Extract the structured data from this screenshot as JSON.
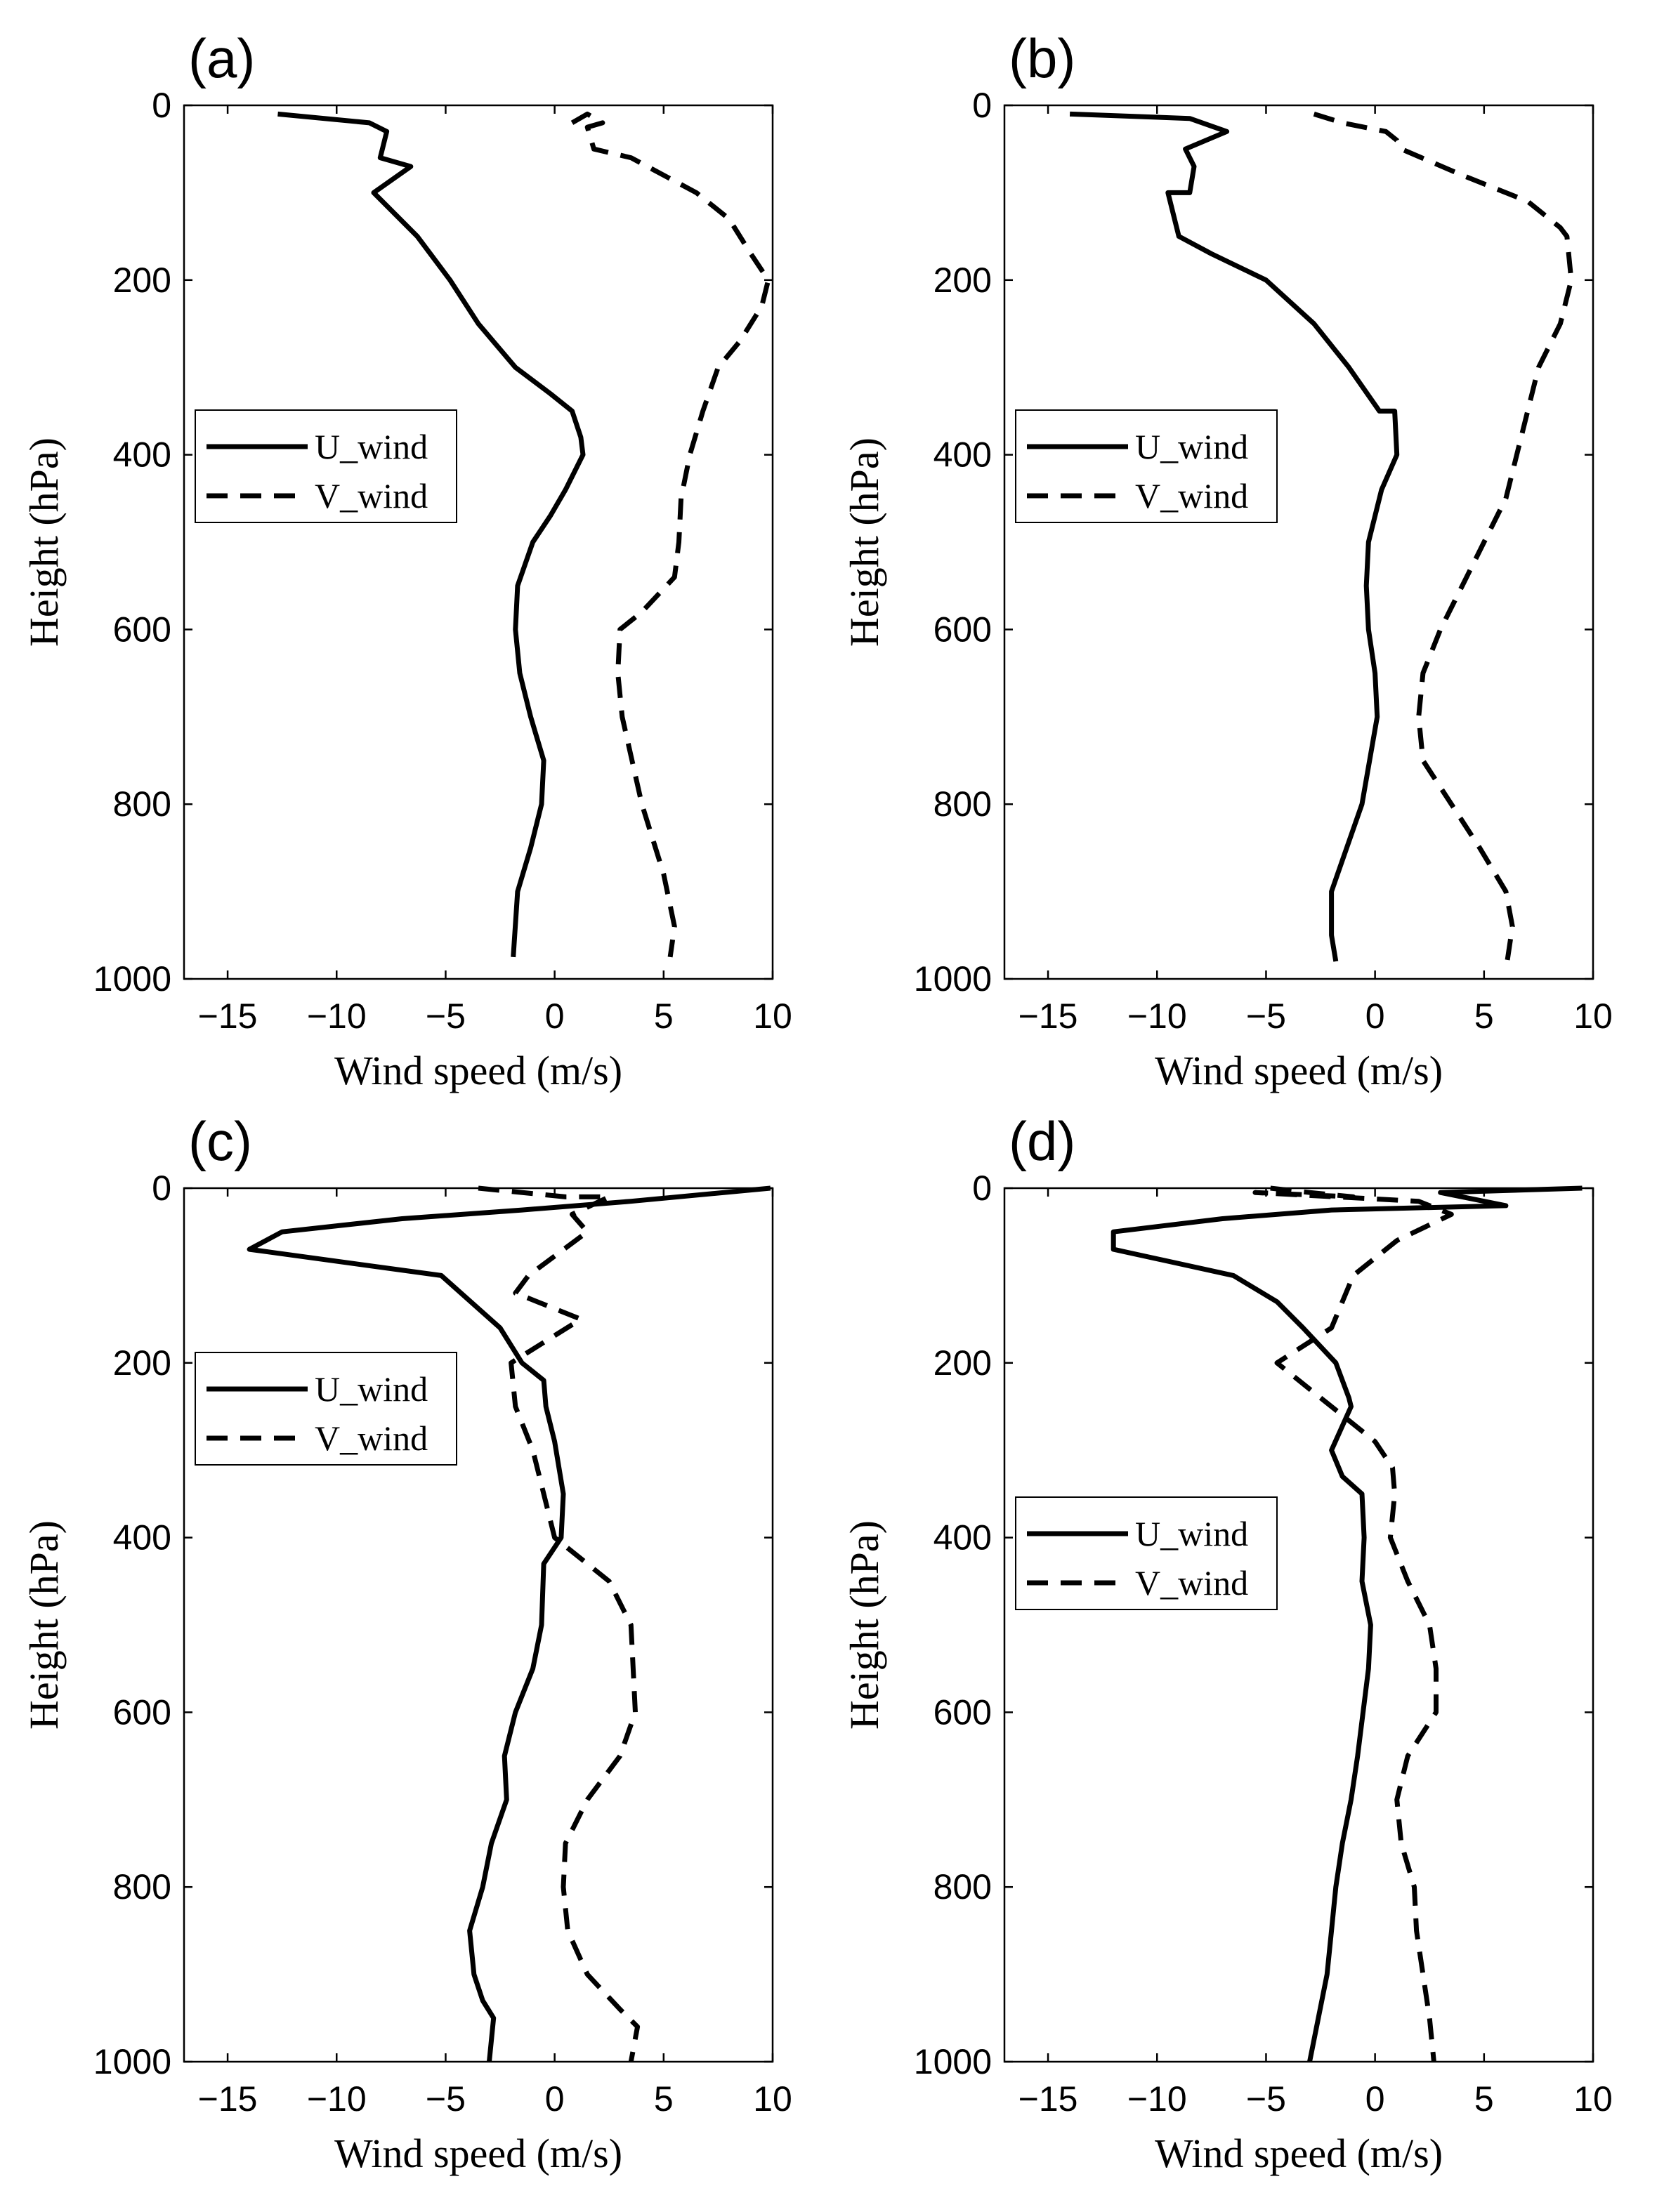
{
  "chart_data": [
    {
      "type": "line",
      "panel_label": "(a)",
      "xlabel": "Wind speed (m/s)",
      "ylabel": "Height (hPa)",
      "xlim": [
        -17,
        10
      ],
      "ylim": [
        0,
        1000
      ],
      "x_ticks": [
        "−15",
        "−10",
        "−5",
        "0",
        "5",
        "10"
      ],
      "x_tick_values": [
        -15,
        -10,
        -5,
        0,
        5,
        10
      ],
      "y_ticks": [
        "0",
        "200",
        "400",
        "600",
        "800",
        "1000"
      ],
      "y_tick_values": [
        0,
        200,
        400,
        600,
        800,
        1000
      ],
      "legend_position": "middle-left",
      "series": [
        {
          "name": "U_wind",
          "style": "solid",
          "x": [
            -12.7,
            -8.5,
            -7.7,
            -8.0,
            -6.6,
            -8.3,
            -6.3,
            -4.8,
            -3.5,
            -1.8,
            -0.2,
            0.8,
            1.2,
            1.3,
            0.5,
            -0.2,
            -1.0,
            -1.7,
            -1.8,
            -1.6,
            -1.1,
            -0.5,
            -0.6,
            -1.1,
            -1.7,
            -1.9
          ],
          "y": [
            10,
            20,
            30,
            60,
            70,
            100,
            150,
            200,
            250,
            300,
            330,
            350,
            380,
            400,
            440,
            470,
            500,
            550,
            600,
            650,
            700,
            750,
            800,
            850,
            900,
            975
          ]
        },
        {
          "name": "V_wind",
          "style": "dashed",
          "x": [
            0.8,
            1.5,
            2.2,
            1.5,
            1.8,
            3.5,
            6.5,
            8.0,
            9.0,
            9.8,
            9.5,
            8.5,
            7.5,
            6.8,
            6.2,
            5.8,
            5.7,
            5.6,
            5.5,
            4.0,
            3.0,
            2.9,
            3.1,
            4.0,
            5.0,
            5.5,
            5.3
          ],
          "y": [
            20,
            10,
            20,
            25,
            50,
            60,
            100,
            130,
            170,
            200,
            230,
            270,
            300,
            350,
            400,
            450,
            500,
            520,
            540,
            580,
            600,
            650,
            700,
            800,
            880,
            940,
            975
          ]
        }
      ]
    },
    {
      "type": "line",
      "panel_label": "(b)",
      "xlabel": "Wind speed (m/s)",
      "ylabel": "Height (hPa)",
      "xlim": [
        -17,
        10
      ],
      "ylim": [
        0,
        1000
      ],
      "x_ticks": [
        "−15",
        "−10",
        "−5",
        "0",
        "5",
        "10"
      ],
      "x_tick_values": [
        -15,
        -10,
        -5,
        0,
        5,
        10
      ],
      "y_ticks": [
        "0",
        "200",
        "400",
        "600",
        "800",
        "1000"
      ],
      "y_tick_values": [
        0,
        200,
        400,
        600,
        800,
        1000
      ],
      "legend_position": "middle-left",
      "series": [
        {
          "name": "U_wind",
          "style": "solid",
          "x": [
            -14.0,
            -8.5,
            -6.8,
            -8.7,
            -8.3,
            -8.5,
            -9.5,
            -9.0,
            -7.5,
            -5.0,
            -2.8,
            -1.2,
            0.2,
            0.9,
            1.0,
            0.3,
            -0.3,
            -0.4,
            -0.3,
            0.0,
            0.1,
            -0.6,
            -1.3,
            -2.0,
            -2.0,
            -1.8
          ],
          "y": [
            10,
            15,
            30,
            50,
            70,
            100,
            100,
            150,
            170,
            200,
            250,
            300,
            350,
            350,
            400,
            440,
            500,
            550,
            600,
            650,
            700,
            800,
            850,
            900,
            950,
            980
          ]
        },
        {
          "name": "V_wind",
          "style": "dashed",
          "x": [
            -2.8,
            -1.5,
            0.5,
            1.0,
            1.2,
            4.0,
            7.0,
            8.5,
            8.8,
            9.0,
            8.5,
            7.5,
            7.0,
            6.5,
            6.0,
            5.0,
            4.0,
            3.0,
            2.2,
            2.0,
            2.2,
            3.5,
            4.8,
            6.0,
            6.3,
            6.0
          ],
          "y": [
            10,
            20,
            30,
            40,
            50,
            80,
            110,
            140,
            150,
            200,
            250,
            300,
            350,
            400,
            450,
            500,
            550,
            600,
            650,
            700,
            750,
            800,
            850,
            900,
            940,
            990
          ]
        }
      ]
    },
    {
      "type": "line",
      "panel_label": "(c)",
      "xlabel": "Wind speed (m/s)",
      "ylabel": "Height (hPa)",
      "xlim": [
        -17,
        10
      ],
      "ylim": [
        0,
        1000
      ],
      "x_ticks": [
        "−15",
        "−10",
        "−5",
        "0",
        "5",
        "10"
      ],
      "x_tick_values": [
        -15,
        -10,
        -5,
        0,
        5,
        10
      ],
      "y_ticks": [
        "0",
        "200",
        "400",
        "600",
        "800",
        "1000"
      ],
      "y_tick_values": [
        0,
        200,
        400,
        600,
        800,
        1000
      ],
      "legend_position": "top-left",
      "series": [
        {
          "name": "U_wind",
          "style": "solid",
          "x": [
            9.9,
            3.5,
            -1.5,
            -7.0,
            -12.5,
            -14.0,
            -5.2,
            -2.5,
            -1.5,
            -0.5,
            -0.4,
            0.0,
            0.4,
            0.3,
            -0.5,
            -0.6,
            -1.0,
            -1.8,
            -2.3,
            -2.2,
            -2.9,
            -3.3,
            -3.9,
            -3.7,
            -3.3,
            -2.8,
            -3.0
          ],
          "y": [
            0,
            15,
            25,
            35,
            50,
            70,
            100,
            160,
            200,
            220,
            250,
            290,
            350,
            400,
            430,
            500,
            550,
            600,
            650,
            700,
            750,
            800,
            850,
            900,
            930,
            950,
            1000
          ]
        },
        {
          "name": "V_wind",
          "style": "dashed",
          "x": [
            -3.5,
            0.5,
            2.5,
            0.8,
            1.5,
            -1.2,
            -1.8,
            1.2,
            -2.0,
            -1.8,
            -1.0,
            -0.5,
            -0.2,
            0.0,
            1.0,
            2.5,
            3.5,
            3.7,
            3.0,
            1.5,
            0.5,
            0.4,
            0.6,
            1.5,
            3.0,
            3.8,
            3.5
          ],
          "y": [
            0,
            10,
            10,
            30,
            50,
            100,
            120,
            150,
            200,
            250,
            300,
            350,
            380,
            400,
            420,
            450,
            500,
            600,
            650,
            700,
            750,
            800,
            850,
            900,
            940,
            960,
            1000
          ]
        }
      ]
    },
    {
      "type": "line",
      "panel_label": "(d)",
      "xlabel": "Wind speed (m/s)",
      "ylabel": "Height (hPa)",
      "xlim": [
        -17,
        10
      ],
      "ylim": [
        0,
        1000
      ],
      "x_ticks": [
        "−15",
        "−10",
        "−5",
        "0",
        "5",
        "10"
      ],
      "x_tick_values": [
        -15,
        -10,
        -5,
        0,
        5,
        10
      ],
      "y_ticks": [
        "0",
        "200",
        "400",
        "600",
        "800",
        "1000"
      ],
      "y_tick_values": [
        0,
        200,
        400,
        600,
        800,
        1000
      ],
      "legend_position": "middle-left",
      "series": [
        {
          "name": "U_wind",
          "style": "solid",
          "x": [
            9.5,
            3.0,
            6.0,
            -2.0,
            -7.0,
            -12.0,
            -12.0,
            -6.5,
            -4.5,
            -3.3,
            -1.8,
            -1.2,
            -1.1,
            -2.0,
            -1.5,
            -0.6,
            -0.5,
            -0.6,
            -0.2,
            -0.3,
            -0.8,
            -1.1,
            -1.5,
            -1.8,
            -2.0,
            -2.2,
            -2.6,
            -3.0
          ],
          "y": [
            0,
            5,
            20,
            25,
            35,
            50,
            70,
            100,
            130,
            160,
            200,
            240,
            250,
            300,
            330,
            350,
            400,
            450,
            500,
            550,
            650,
            700,
            750,
            800,
            850,
            900,
            950,
            1000
          ]
        },
        {
          "name": "V_wind",
          "style": "dashed",
          "x": [
            -4.8,
            -3.0,
            -1.0,
            -5.5,
            2.0,
            3.5,
            1.0,
            -1.0,
            -2.0,
            -4.5,
            -3.0,
            -1.5,
            0.0,
            0.8,
            0.9,
            0.7,
            1.5,
            2.5,
            2.8,
            2.8,
            1.5,
            1.0,
            1.2,
            1.8,
            1.9,
            2.5,
            2.7
          ],
          "y": [
            0,
            5,
            10,
            5,
            15,
            30,
            60,
            100,
            160,
            200,
            230,
            260,
            290,
            320,
            350,
            400,
            450,
            500,
            550,
            600,
            650,
            700,
            750,
            800,
            850,
            950,
            1000
          ]
        }
      ]
    }
  ]
}
